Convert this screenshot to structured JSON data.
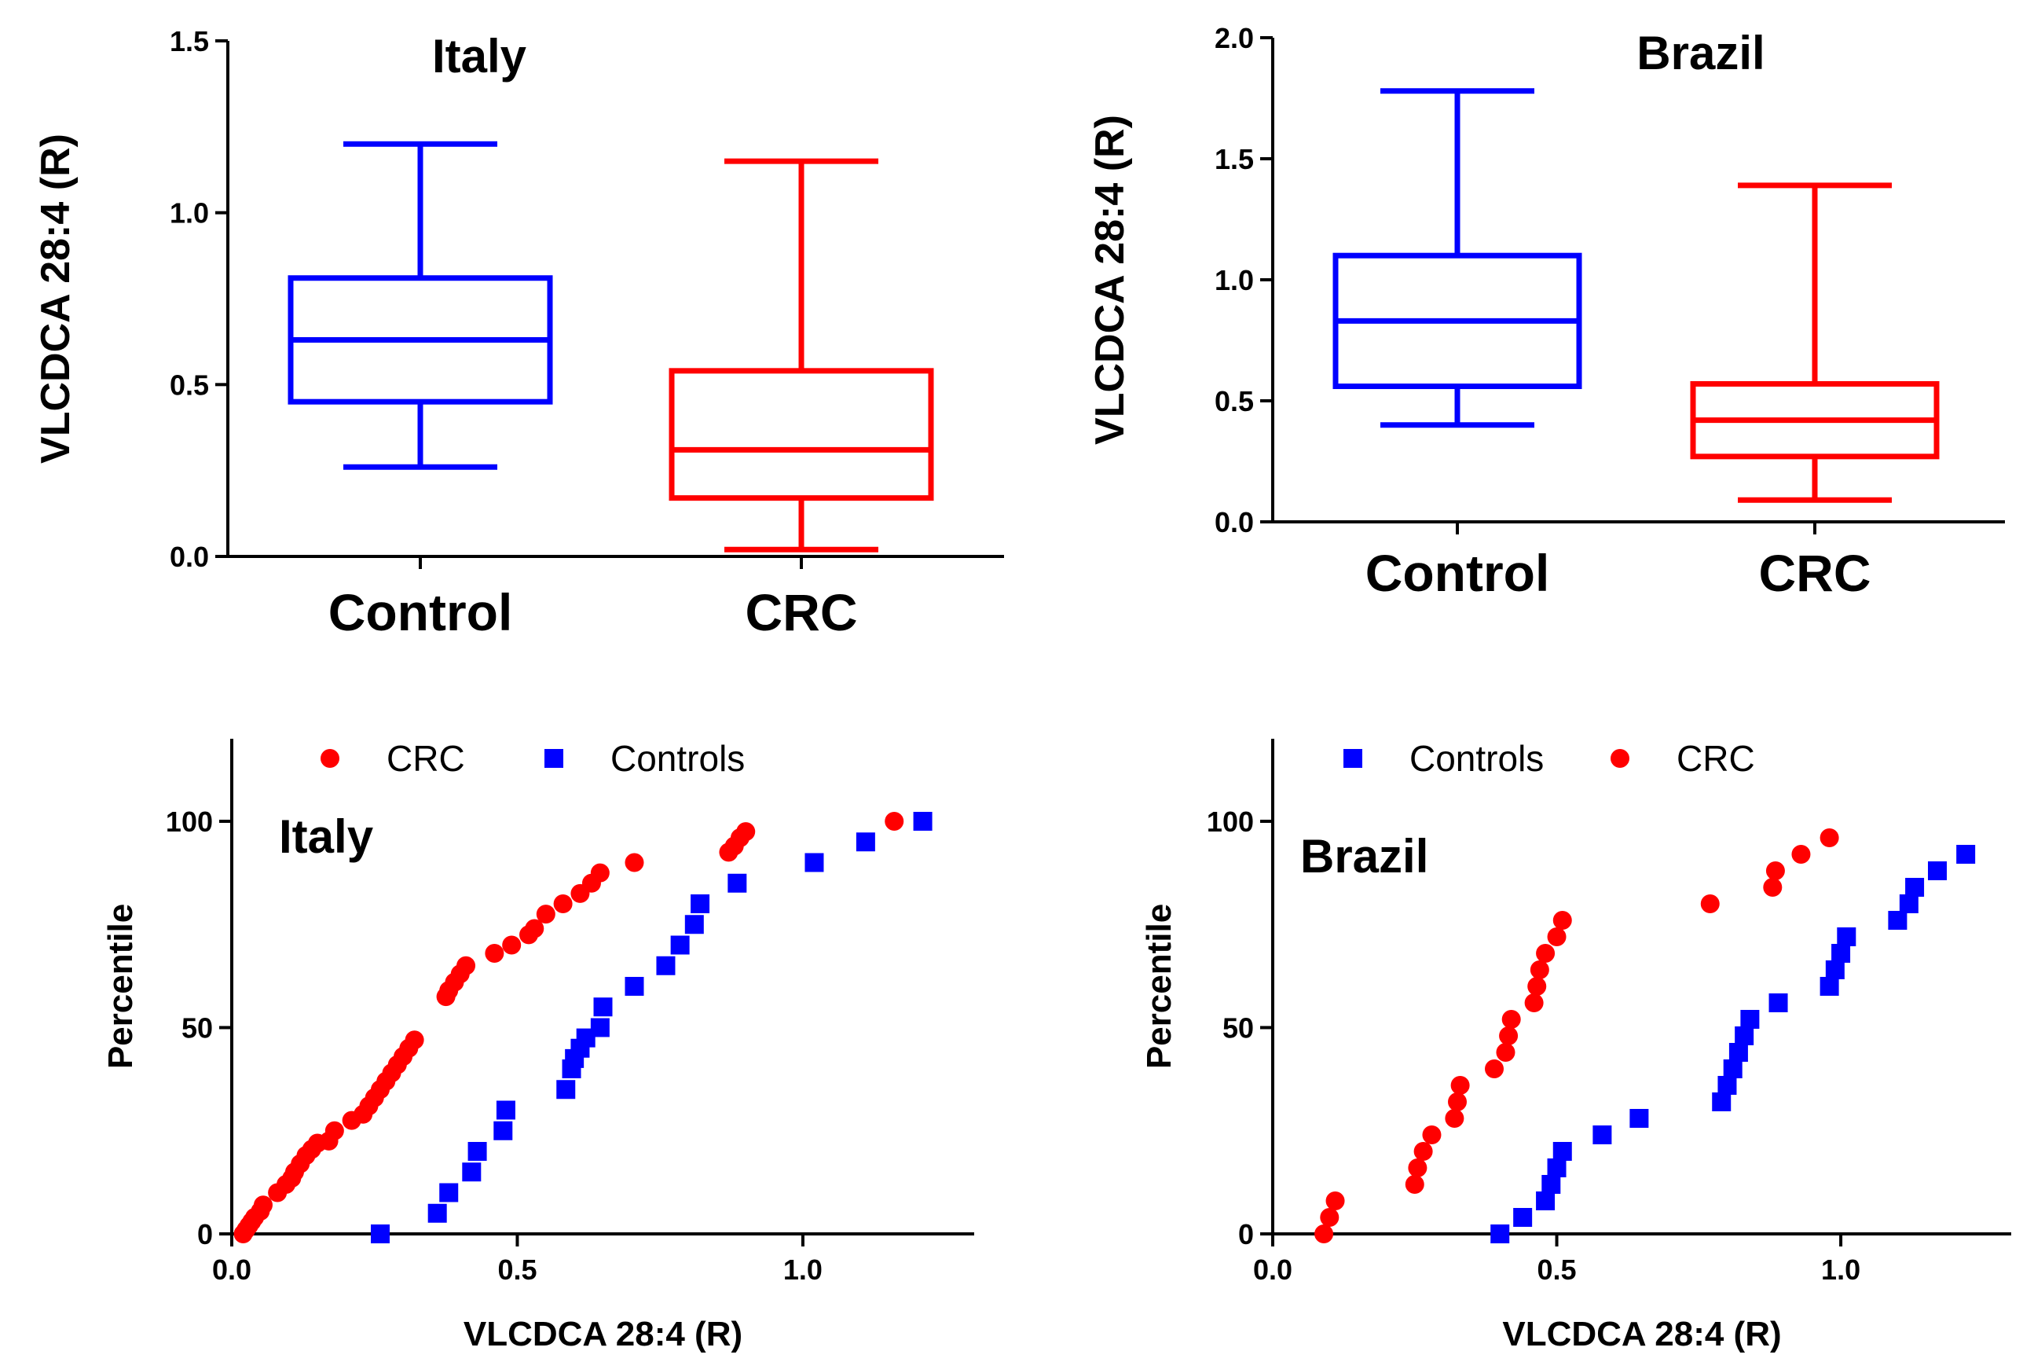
{
  "colors": {
    "control": "#0000ff",
    "crc": "#ff0000",
    "axis": "#000000"
  },
  "chart_data": [
    {
      "type": "box",
      "title": "Italy",
      "ylabel": "VLCDCA 28:4 (R)",
      "ylim": [
        0,
        1.5
      ],
      "yticks": [
        0.0,
        0.5,
        1.0,
        1.5
      ],
      "yticklabels": [
        "0.0",
        "0.5",
        "1.0",
        "1.5"
      ],
      "categories": [
        "Control",
        "CRC"
      ],
      "series": [
        {
          "name": "Control",
          "color": "#0000ff",
          "min": 0.26,
          "q1": 0.45,
          "median": 0.63,
          "q3": 0.81,
          "max": 1.2
        },
        {
          "name": "CRC",
          "color": "#ff0000",
          "min": 0.02,
          "q1": 0.17,
          "median": 0.31,
          "q3": 0.54,
          "max": 1.15
        }
      ]
    },
    {
      "type": "box",
      "title": "Brazil",
      "ylabel": "VLCDCA 28:4 (R)",
      "ylim": [
        0,
        2.0
      ],
      "yticks": [
        0.0,
        0.5,
        1.0,
        1.5,
        2.0
      ],
      "yticklabels": [
        "0.0",
        "0.5",
        "1.0",
        "1.5",
        "2.0"
      ],
      "categories": [
        "Control",
        "CRC"
      ],
      "series": [
        {
          "name": "Control",
          "color": "#0000ff",
          "min": 0.4,
          "q1": 0.56,
          "median": 0.83,
          "q3": 1.1,
          "max": 1.78
        },
        {
          "name": "CRC",
          "color": "#ff0000",
          "min": 0.09,
          "q1": 0.27,
          "median": 0.42,
          "q3": 0.57,
          "max": 1.39
        }
      ]
    },
    {
      "type": "scatter",
      "title": "Italy",
      "xlabel": "VLCDCA 28:4 (R)",
      "ylabel": "Percentile",
      "xlim": [
        0,
        1.3
      ],
      "ylim": [
        0,
        120
      ],
      "xticks": [
        0.0,
        0.5,
        1.0
      ],
      "xticklabels": [
        "0.0",
        "0.5",
        "1.0"
      ],
      "yticks": [
        0,
        50,
        100
      ],
      "yticklabels": [
        "0",
        "50",
        "100"
      ],
      "legend": "top",
      "series": [
        {
          "name": "CRC",
          "marker": "circle",
          "color": "#ff0000",
          "x": [
            0.02,
            0.025,
            0.03,
            0.035,
            0.04,
            0.05,
            0.055,
            0.08,
            0.095,
            0.105,
            0.11,
            0.12,
            0.13,
            0.14,
            0.15,
            0.17,
            0.18,
            0.21,
            0.23,
            0.24,
            0.25,
            0.26,
            0.27,
            0.28,
            0.29,
            0.3,
            0.31,
            0.32,
            0.375,
            0.38,
            0.39,
            0.4,
            0.41,
            0.46,
            0.49,
            0.52,
            0.53,
            0.55,
            0.58,
            0.61,
            0.63,
            0.645,
            0.705,
            0.87,
            0.88,
            0.89,
            0.9,
            1.16
          ],
          "y": [
            0,
            1,
            2,
            3,
            4,
            5.5,
            7,
            10,
            12,
            13.5,
            15,
            17,
            19,
            20.5,
            22,
            22.5,
            25,
            27.5,
            29,
            31,
            33,
            35,
            37,
            39,
            41,
            43,
            45,
            47,
            57.5,
            59,
            61,
            63,
            65,
            68,
            70,
            72.5,
            74,
            77.5,
            80,
            82.5,
            85,
            87.5,
            90,
            92.5,
            94,
            96,
            97.5,
            100
          ]
        },
        {
          "name": "Controls",
          "marker": "square",
          "color": "#0000ff",
          "x": [
            0.26,
            0.36,
            0.38,
            0.42,
            0.43,
            0.475,
            0.48,
            0.585,
            0.595,
            0.6,
            0.61,
            0.62,
            0.645,
            0.65,
            0.705,
            0.76,
            0.785,
            0.81,
            0.82,
            0.885,
            1.02,
            1.11,
            1.21
          ],
          "y": [
            0,
            5,
            10,
            15,
            20,
            25,
            30,
            35,
            40,
            42.5,
            45,
            47.5,
            50,
            55,
            60,
            65,
            70,
            75,
            80,
            85,
            90,
            95,
            100
          ]
        }
      ]
    },
    {
      "type": "scatter",
      "title": "Brazil",
      "xlabel": "VLCDCA 28:4 (R)",
      "ylabel": "Percentile",
      "xlim": [
        0,
        1.3
      ],
      "ylim": [
        0,
        120
      ],
      "xticks": [
        0.0,
        0.5,
        1.0
      ],
      "xticklabels": [
        "0.0",
        "0.5",
        "1.0"
      ],
      "yticks": [
        0,
        50,
        100
      ],
      "yticklabels": [
        "0",
        "50",
        "100"
      ],
      "legend": "top",
      "series": [
        {
          "name": "Controls",
          "marker": "square",
          "color": "#0000ff",
          "x": [
            0.4,
            0.44,
            0.48,
            0.49,
            0.5,
            0.51,
            0.58,
            0.645,
            0.79,
            0.8,
            0.81,
            0.82,
            0.83,
            0.84,
            0.89,
            0.98,
            0.99,
            1.0,
            1.01,
            1.1,
            1.12,
            1.13,
            1.17,
            1.22
          ],
          "y": [
            0,
            4,
            8,
            12,
            16,
            20,
            24,
            28,
            32,
            36,
            40,
            44,
            48,
            52,
            56,
            60,
            64,
            68,
            72,
            76,
            80,
            84,
            88,
            92
          ]
        },
        {
          "name": "CRC",
          "marker": "circle",
          "color": "#ff0000",
          "x": [
            0.09,
            0.1,
            0.11,
            0.25,
            0.255,
            0.265,
            0.28,
            0.32,
            0.325,
            0.33,
            0.39,
            0.41,
            0.415,
            0.42,
            0.46,
            0.465,
            0.47,
            0.48,
            0.5,
            0.51,
            0.77,
            0.88,
            0.885,
            0.93,
            0.98
          ],
          "y": [
            0,
            4,
            8,
            12,
            16,
            20,
            24,
            28,
            32,
            36,
            40,
            44,
            48,
            52,
            56,
            60,
            64,
            68,
            72,
            76,
            80,
            84,
            88,
            92,
            96
          ]
        }
      ]
    }
  ]
}
